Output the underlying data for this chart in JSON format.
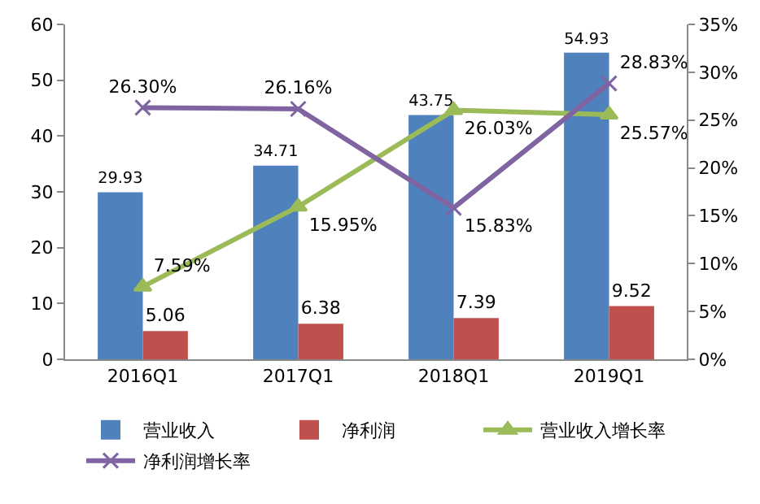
{
  "chart_data": {
    "type": "bar",
    "categories": [
      "2016Q1",
      "2017Q1",
      "2018Q1",
      "2019Q1"
    ],
    "series": [
      {
        "name": "营业收入",
        "color": "#4f81bd",
        "values": [
          29.93,
          34.71,
          43.75,
          54.93
        ],
        "value_labels": [
          "29.93",
          "34.71",
          "43.75",
          "54.93"
        ]
      },
      {
        "name": "净利润",
        "color": "#c0504d",
        "values": [
          5.06,
          6.38,
          7.39,
          9.52
        ],
        "value_labels": [
          "5.06",
          "6.38",
          "7.39",
          "9.52"
        ]
      },
      {
        "name": "营业收入增长率",
        "type": "line",
        "axis": "y2",
        "marker": "triangle",
        "color": "#9bbb59",
        "values": [
          7.59,
          15.95,
          26.03,
          25.57
        ],
        "value_labels": [
          "7.59%",
          "15.95%",
          "26.03%",
          "25.57%"
        ]
      },
      {
        "name": "净利润增长率",
        "type": "line",
        "axis": "y2",
        "marker": "cross",
        "color": "#8064a2",
        "values": [
          26.3,
          26.16,
          15.83,
          28.83
        ],
        "value_labels": [
          "26.30%",
          "26.16%",
          "15.83%",
          "28.83%"
        ]
      }
    ],
    "ylim": [
      0,
      60
    ],
    "yticks": [
      0,
      10,
      20,
      30,
      40,
      50,
      60
    ],
    "y2lim": [
      0,
      35
    ],
    "y2ticks": [
      {
        "value": 0,
        "label": "0%"
      },
      {
        "value": 5,
        "label": "5%"
      },
      {
        "value": 10,
        "label": "10%"
      },
      {
        "value": 15,
        "label": "15%"
      },
      {
        "value": 20,
        "label": "20%"
      },
      {
        "value": 25,
        "label": "25%"
      },
      {
        "value": 30,
        "label": "30%"
      },
      {
        "value": 35,
        "label": "35%"
      }
    ],
    "grid": false,
    "legend": "bottom"
  }
}
